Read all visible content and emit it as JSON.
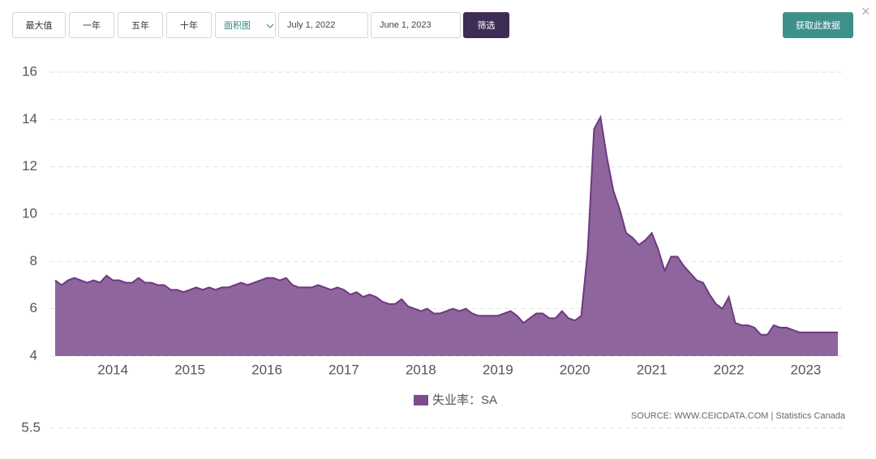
{
  "toolbar": {
    "ranges": [
      "最大值",
      "一年",
      "五年",
      "十年"
    ],
    "chart_kind": "面积图",
    "start_date": "July 1, 2022",
    "end_date": "June 1, 2023",
    "filter": "筛选",
    "get_data": "获取此数据",
    "close": "×"
  },
  "chart_data": {
    "type": "area",
    "categories": [
      null,
      null,
      null,
      null,
      null,
      null,
      null,
      null,
      null,
      "2014",
      null,
      null,
      null,
      null,
      null,
      null,
      null,
      null,
      null,
      null,
      null,
      "2015",
      null,
      null,
      null,
      null,
      null,
      null,
      null,
      null,
      null,
      null,
      null,
      "2016",
      null,
      null,
      null,
      null,
      null,
      null,
      null,
      null,
      null,
      null,
      null,
      "2017",
      null,
      null,
      null,
      null,
      null,
      null,
      null,
      null,
      null,
      null,
      null,
      "2018",
      null,
      null,
      null,
      null,
      null,
      null,
      null,
      null,
      null,
      null,
      null,
      "2019",
      null,
      null,
      null,
      null,
      null,
      null,
      null,
      null,
      null,
      null,
      null,
      "2020",
      null,
      null,
      null,
      null,
      null,
      null,
      null,
      null,
      null,
      null,
      null,
      "2021",
      null,
      null,
      null,
      null,
      null,
      null,
      null,
      null,
      null,
      null,
      null,
      "2022",
      null,
      null,
      null,
      null,
      null,
      null,
      null,
      null,
      null,
      null,
      null,
      "2023",
      null,
      null,
      null,
      null,
      null
    ],
    "series": [
      {
        "name": "失业率：SA",
        "color": "#6e3a80",
        "values": [
          7.2,
          7.0,
          7.2,
          7.3,
          7.2,
          7.1,
          7.2,
          7.1,
          7.4,
          7.2,
          7.2,
          7.1,
          7.1,
          7.3,
          7.1,
          7.1,
          7.0,
          7.0,
          6.8,
          6.8,
          6.7,
          6.8,
          6.9,
          6.8,
          6.9,
          6.8,
          6.9,
          6.9,
          7.0,
          7.1,
          7.0,
          7.1,
          7.2,
          7.3,
          7.3,
          7.2,
          7.3,
          7.0,
          6.9,
          6.9,
          6.9,
          7.0,
          6.9,
          6.8,
          6.9,
          6.8,
          6.6,
          6.7,
          6.5,
          6.6,
          6.5,
          6.3,
          6.2,
          6.2,
          6.4,
          6.1,
          6.0,
          5.9,
          6.0,
          5.8,
          5.8,
          5.9,
          6.0,
          5.9,
          6.0,
          5.8,
          5.7,
          5.7,
          5.7,
          5.7,
          5.8,
          5.9,
          5.7,
          5.4,
          5.6,
          5.8,
          5.8,
          5.6,
          5.6,
          5.9,
          5.6,
          5.5,
          5.7,
          8.4,
          13.6,
          14.1,
          12.4,
          11.0,
          10.2,
          9.2,
          9.0,
          8.7,
          8.9,
          9.2,
          8.5,
          7.6,
          8.2,
          8.2,
          7.8,
          7.5,
          7.2,
          7.1,
          6.6,
          6.2,
          6.0,
          6.5,
          5.4,
          5.3,
          5.3,
          5.2,
          4.9,
          4.9,
          5.3,
          5.2,
          5.2,
          5.1,
          5.0,
          5.0,
          5.0,
          5.0,
          5.0,
          5.0,
          5.0
        ]
      }
    ],
    "ylim": [
      4,
      16
    ],
    "yticks": [
      4,
      6,
      8,
      10,
      12,
      14,
      16
    ],
    "grid": true,
    "source": "SOURCE: WWW.CEICDATA.COM | Statistics Canada"
  },
  "next_chart": {
    "yticks": [
      5.5
    ]
  }
}
